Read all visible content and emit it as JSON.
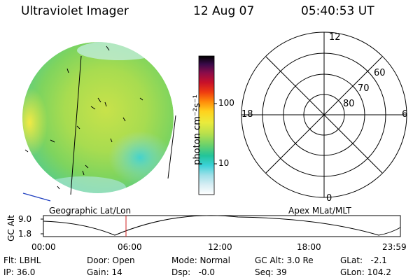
{
  "header": {
    "title": "Ultraviolet Imager",
    "date": "12 Aug 07",
    "time": "05:40:53 UT"
  },
  "colorbar": {
    "unit": "photon cm⁻²s⁻¹",
    "ticks": [
      "100",
      "10"
    ],
    "colors": [
      "#ffffff",
      "#d8eef4",
      "#9fe0e8",
      "#3cd2d8",
      "#22c49a",
      "#6ed26a",
      "#b8e04c",
      "#eaeb3c",
      "#ffd21e",
      "#ff8c0a",
      "#ee3b10",
      "#c8102a",
      "#8a0c4a",
      "#3a0a4a",
      "#000000"
    ]
  },
  "polar": {
    "mlt_labels": {
      "top": "12",
      "right": "6",
      "bottom": "0",
      "left": "18"
    },
    "lat_labels": [
      "60",
      "70",
      "80"
    ]
  },
  "strip": {
    "left_label": "Geographic Lat/Lon",
    "right_label": "Apex MLat/MLT",
    "y_axis_title": "GC Alt",
    "y_ticks": [
      "9.0",
      "1.8"
    ],
    "x_ticks": [
      "00:00",
      "06:00",
      "12:00",
      "18:00",
      "23:59"
    ]
  },
  "info": {
    "flt": "Flt: LBHL",
    "ip": "IP: 36.0",
    "door": "Door: Open",
    "gain": "Gain: 14",
    "mode": "Mode: Normal",
    "dsp": "Dsp:   -0.0",
    "gcalt": "GC Alt: 3.0 Re",
    "seq": "Seq: 39",
    "glat": "GLat:   -2.1",
    "glon": "GLon: 104.2"
  }
}
